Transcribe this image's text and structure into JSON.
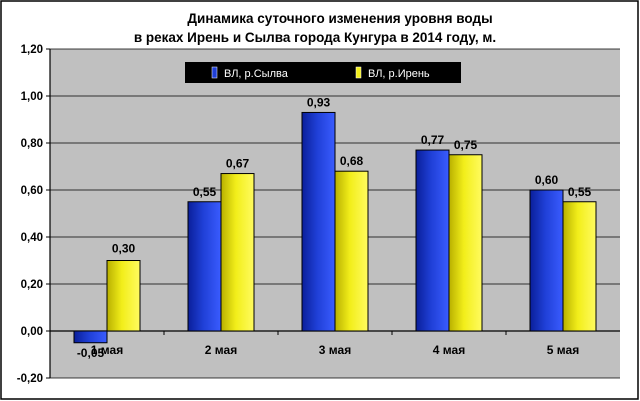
{
  "chart_data": {
    "type": "bar",
    "title_lines": [
      "Динамика суточного  изменения уровня воды",
      "в реках Ирень и Сылва  города Кунгура в 2014 году, м."
    ],
    "categories": [
      "1 мая",
      "2 мая",
      "3 мая",
      "4 мая",
      "5 мая"
    ],
    "series": [
      {
        "name": "ВЛ, р.Сылва",
        "values": [
          -0.05,
          0.55,
          0.93,
          0.77,
          0.6
        ],
        "labels": [
          "-0,05",
          "0,55",
          "0,93",
          "0,77",
          "0,60"
        ],
        "color": "#1f3fd6"
      },
      {
        "name": "ВЛ, р.Ирень",
        "values": [
          0.3,
          0.67,
          0.68,
          0.75,
          0.55
        ],
        "labels": [
          "0,30",
          "0,67",
          "0,68",
          "0,75",
          "0,55"
        ],
        "color": "#f2ee1a"
      }
    ],
    "ylim": [
      -0.2,
      1.2
    ],
    "yticks": [
      -0.2,
      0.0,
      0.2,
      0.4,
      0.6,
      0.8,
      1.0,
      1.2
    ],
    "ytick_labels": [
      "-0,20",
      "0,00",
      "0,20",
      "0,40",
      "0,60",
      "0,80",
      "1,00",
      "1,20"
    ],
    "grid": true,
    "legend_position": "top-center",
    "plot_background": "#c0c0c0",
    "legend_background": "#000000"
  }
}
